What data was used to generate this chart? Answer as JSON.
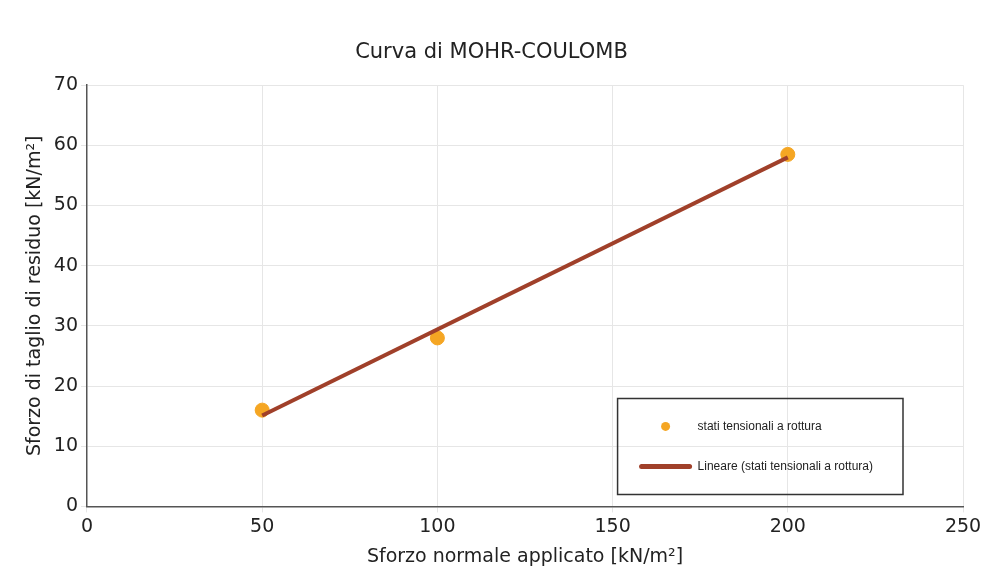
{
  "chart_data": {
    "type": "scatter",
    "title": "Curva di MOHR-COULOMB",
    "xlabel": "Sforzo normale applicato [kN/m²]",
    "ylabel": "Sforzo di taglio di residuo [kN/m²]",
    "series": [
      {
        "name": "stati tensionali a rottura",
        "color": "#f5a623",
        "x": [
          50,
          100,
          200
        ],
        "values": [
          16,
          28,
          58.5
        ],
        "marker": "circle"
      },
      {
        "name": "Lineare (stati tensionali a rottura)",
        "type": "line",
        "color": "#a0402a",
        "x": [
          50,
          200
        ],
        "values": [
          15.1,
          58.0
        ],
        "marker": "none",
        "line_style": "solid"
      }
    ],
    "xlim": [
      0,
      250
    ],
    "xticks": [
      0,
      50,
      100,
      150,
      200,
      250
    ],
    "ylim": [
      0,
      70
    ],
    "yticks": [
      0,
      10,
      20,
      30,
      40,
      50,
      60,
      70
    ],
    "grid": true,
    "legend": "bottom right"
  }
}
